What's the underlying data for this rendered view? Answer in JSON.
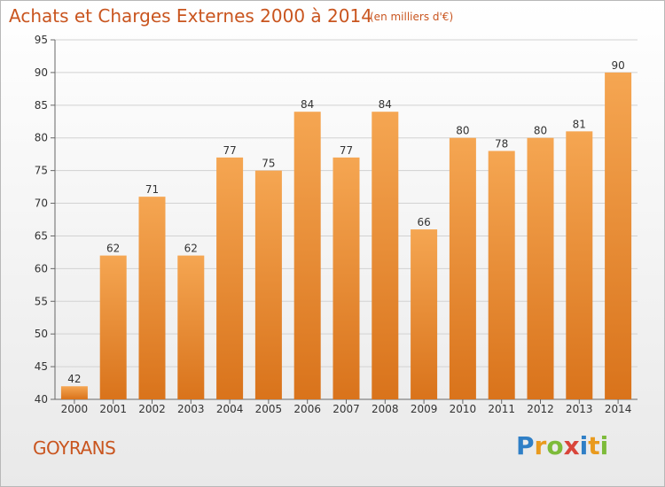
{
  "header": {
    "title": "Achats et Charges Externes 2000 à 2014",
    "subtitle": "(en milliers d'€)"
  },
  "footer": {
    "label": "GOYRANS",
    "logo": {
      "text": "Proxiti",
      "letters": [
        {
          "ch": "P",
          "color": "#2f7fc6"
        },
        {
          "ch": "r",
          "color": "#e99a1e"
        },
        {
          "ch": "o",
          "color": "#7dbb3a"
        },
        {
          "ch": "x",
          "color": "#d9453a"
        },
        {
          "ch": "i",
          "color": "#2f7fc6"
        },
        {
          "ch": "t",
          "color": "#e99a1e"
        },
        {
          "ch": "i",
          "color": "#7dbb3a"
        }
      ]
    }
  },
  "colors": {
    "bar_top": "#f5a652",
    "bar_bottom": "#d9731b",
    "title": "#c9551f"
  },
  "chart_data": {
    "type": "bar",
    "title": "Achats et Charges Externes 2000 à 2014",
    "subtitle": "(en milliers d'€)",
    "xlabel": "",
    "ylabel": "",
    "categories": [
      "2000",
      "2001",
      "2002",
      "2003",
      "2004",
      "2005",
      "2006",
      "2007",
      "2008",
      "2009",
      "2010",
      "2011",
      "2012",
      "2013",
      "2014"
    ],
    "values": [
      42,
      62,
      71,
      62,
      77,
      75,
      84,
      77,
      84,
      66,
      80,
      78,
      80,
      81,
      90
    ],
    "ylim": [
      40,
      95
    ],
    "yticks": [
      40,
      45,
      50,
      55,
      60,
      65,
      70,
      75,
      80,
      85,
      90,
      95
    ],
    "grid": true,
    "legend": "none"
  }
}
